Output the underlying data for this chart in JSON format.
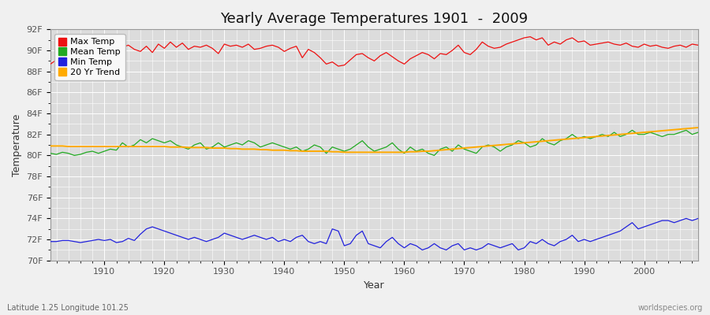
{
  "title": "Yearly Average Temperatures 1901  -  2009",
  "xlabel": "Year",
  "ylabel": "Temperature",
  "subtitle": "Latitude 1.25 Longitude 101.25",
  "watermark": "worldspecies.org",
  "years": [
    1901,
    1902,
    1903,
    1904,
    1905,
    1906,
    1907,
    1908,
    1909,
    1910,
    1911,
    1912,
    1913,
    1914,
    1915,
    1916,
    1917,
    1918,
    1919,
    1920,
    1921,
    1922,
    1923,
    1924,
    1925,
    1926,
    1927,
    1928,
    1929,
    1930,
    1931,
    1932,
    1933,
    1934,
    1935,
    1936,
    1937,
    1938,
    1939,
    1940,
    1941,
    1942,
    1943,
    1944,
    1945,
    1946,
    1947,
    1948,
    1949,
    1950,
    1951,
    1952,
    1953,
    1954,
    1955,
    1956,
    1957,
    1958,
    1959,
    1960,
    1961,
    1962,
    1963,
    1964,
    1965,
    1966,
    1967,
    1968,
    1969,
    1970,
    1971,
    1972,
    1973,
    1974,
    1975,
    1976,
    1977,
    1978,
    1979,
    1980,
    1981,
    1982,
    1983,
    1984,
    1985,
    1986,
    1987,
    1988,
    1989,
    1990,
    1991,
    1992,
    1993,
    1994,
    1995,
    1996,
    1997,
    1998,
    1999,
    2000,
    2001,
    2002,
    2003,
    2004,
    2005,
    2006,
    2007,
    2008,
    2009
  ],
  "max_temp": [
    88.7,
    89.1,
    88.5,
    89.0,
    89.2,
    88.8,
    89.0,
    88.6,
    89.3,
    90.5,
    89.8,
    90.2,
    90.3,
    90.5,
    90.1,
    89.9,
    90.4,
    89.8,
    90.6,
    90.2,
    90.8,
    90.3,
    90.7,
    90.1,
    90.4,
    90.3,
    90.5,
    90.2,
    89.7,
    90.6,
    90.4,
    90.5,
    90.3,
    90.6,
    90.1,
    90.2,
    90.4,
    90.5,
    90.3,
    89.9,
    90.2,
    90.4,
    89.3,
    90.1,
    89.8,
    89.3,
    88.7,
    88.9,
    88.5,
    88.6,
    89.1,
    89.6,
    89.7,
    89.3,
    89.0,
    89.5,
    89.8,
    89.4,
    89.0,
    88.7,
    89.2,
    89.5,
    89.8,
    89.6,
    89.2,
    89.7,
    89.6,
    90.0,
    90.5,
    89.8,
    89.6,
    90.1,
    90.8,
    90.4,
    90.2,
    90.3,
    90.6,
    90.8,
    91.0,
    91.2,
    91.3,
    91.0,
    91.2,
    90.5,
    90.8,
    90.6,
    91.0,
    91.2,
    90.8,
    90.9,
    90.5,
    90.6,
    90.7,
    90.8,
    90.6,
    90.5,
    90.7,
    90.4,
    90.3,
    90.6,
    90.4,
    90.5,
    90.3,
    90.2,
    90.4,
    90.5,
    90.3,
    90.6,
    90.5
  ],
  "mean_temp": [
    80.2,
    80.1,
    80.3,
    80.2,
    80.0,
    80.1,
    80.3,
    80.4,
    80.2,
    80.4,
    80.6,
    80.5,
    81.2,
    80.8,
    81.0,
    81.5,
    81.2,
    81.6,
    81.4,
    81.2,
    81.4,
    81.0,
    80.8,
    80.6,
    81.0,
    81.2,
    80.6,
    80.8,
    81.2,
    80.8,
    81.0,
    81.2,
    81.0,
    81.4,
    81.2,
    80.8,
    81.0,
    81.2,
    81.0,
    80.8,
    80.6,
    80.8,
    80.4,
    80.6,
    81.0,
    80.8,
    80.2,
    80.8,
    80.6,
    80.4,
    80.6,
    81.0,
    81.4,
    80.8,
    80.4,
    80.6,
    80.8,
    81.2,
    80.6,
    80.2,
    80.8,
    80.4,
    80.6,
    80.2,
    80.0,
    80.6,
    80.8,
    80.4,
    81.0,
    80.6,
    80.4,
    80.2,
    80.8,
    81.0,
    80.8,
    80.4,
    80.8,
    81.0,
    81.4,
    81.2,
    80.8,
    81.0,
    81.6,
    81.2,
    81.0,
    81.4,
    81.6,
    82.0,
    81.6,
    81.8,
    81.6,
    81.8,
    82.0,
    81.8,
    82.2,
    81.8,
    82.0,
    82.4,
    82.0,
    82.0,
    82.2,
    82.0,
    81.8,
    82.0,
    82.0,
    82.2,
    82.4,
    82.0,
    82.2
  ],
  "min_temp": [
    71.8,
    71.8,
    71.9,
    71.9,
    71.8,
    71.7,
    71.8,
    71.9,
    72.0,
    71.9,
    72.0,
    71.7,
    71.8,
    72.1,
    71.9,
    72.5,
    73.0,
    73.2,
    73.0,
    72.8,
    72.6,
    72.4,
    72.2,
    72.0,
    72.2,
    72.0,
    71.8,
    72.0,
    72.2,
    72.6,
    72.4,
    72.2,
    72.0,
    72.2,
    72.4,
    72.2,
    72.0,
    72.2,
    71.8,
    72.0,
    71.8,
    72.2,
    72.4,
    71.8,
    71.6,
    71.8,
    71.6,
    73.0,
    72.8,
    71.4,
    71.6,
    72.4,
    72.8,
    71.6,
    71.4,
    71.2,
    71.8,
    72.2,
    71.6,
    71.2,
    71.6,
    71.4,
    71.0,
    71.2,
    71.6,
    71.2,
    71.0,
    71.4,
    71.6,
    71.0,
    71.2,
    71.0,
    71.2,
    71.6,
    71.4,
    71.2,
    71.4,
    71.6,
    71.0,
    71.2,
    71.8,
    71.6,
    72.0,
    71.6,
    71.4,
    71.8,
    72.0,
    72.4,
    71.8,
    72.0,
    71.8,
    72.0,
    72.2,
    72.4,
    72.6,
    72.8,
    73.2,
    73.6,
    73.0,
    73.2,
    73.4,
    73.6,
    73.8,
    73.8,
    73.6,
    73.8,
    74.0,
    73.8,
    74.0
  ],
  "trend_temp": [
    80.9,
    80.9,
    80.9,
    80.85,
    80.85,
    80.85,
    80.85,
    80.85,
    80.85,
    80.85,
    80.85,
    80.85,
    80.85,
    80.85,
    80.85,
    80.85,
    80.85,
    80.85,
    80.85,
    80.85,
    80.8,
    80.8,
    80.8,
    80.75,
    80.75,
    80.75,
    80.75,
    80.7,
    80.7,
    80.7,
    80.65,
    80.65,
    80.6,
    80.6,
    80.6,
    80.55,
    80.55,
    80.5,
    80.5,
    80.5,
    80.45,
    80.45,
    80.4,
    80.4,
    80.4,
    80.4,
    80.4,
    80.35,
    80.35,
    80.3,
    80.3,
    80.3,
    80.3,
    80.3,
    80.3,
    80.3,
    80.3,
    80.3,
    80.3,
    80.3,
    80.35,
    80.35,
    80.4,
    80.4,
    80.45,
    80.5,
    80.55,
    80.6,
    80.65,
    80.7,
    80.75,
    80.8,
    80.85,
    80.9,
    80.95,
    81.0,
    81.05,
    81.1,
    81.15,
    81.2,
    81.25,
    81.3,
    81.35,
    81.4,
    81.45,
    81.5,
    81.55,
    81.6,
    81.65,
    81.7,
    81.75,
    81.8,
    81.85,
    81.9,
    81.95,
    82.0,
    82.05,
    82.1,
    82.15,
    82.2,
    82.25,
    82.3,
    82.35,
    82.4,
    82.45,
    82.5,
    82.55,
    82.6,
    82.65
  ],
  "colors": {
    "max_temp": "#ee1111",
    "mean_temp": "#22aa22",
    "min_temp": "#2222dd",
    "trend": "#ffaa00",
    "fig_bg": "#f0f0f0",
    "plot_bg": "#dcdcdc",
    "grid": "#ffffff",
    "title": "#111111",
    "tick_label": "#555555"
  },
  "ylim": [
    70,
    92
  ],
  "yticks": [
    70,
    72,
    74,
    76,
    78,
    80,
    82,
    84,
    86,
    88,
    90,
    92
  ],
  "xlim": [
    1901,
    2009
  ],
  "xticks": [
    1910,
    1920,
    1930,
    1940,
    1950,
    1960,
    1970,
    1980,
    1990,
    2000
  ],
  "legend_labels": [
    "Max Temp",
    "Mean Temp",
    "Min Temp",
    "20 Yr Trend"
  ],
  "legend_colors": [
    "#ee1111",
    "#22aa22",
    "#2222dd",
    "#ffaa00"
  ]
}
